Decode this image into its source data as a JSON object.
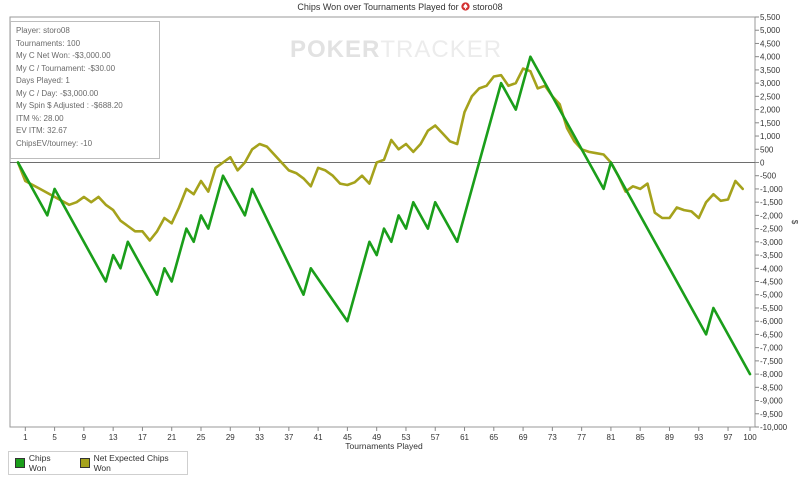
{
  "title": {
    "text": "Chips Won over Tournaments Played for",
    "player": "storo08",
    "icon": "pokerstars-spade-icon"
  },
  "watermark": {
    "bold": "POKER",
    "light": "TRACKER"
  },
  "stats": [
    "Player: storo08",
    "Tournaments: 100",
    "My C Net Won: -$3,000.00",
    "My C / Tournament: -$30.00",
    "Days Played: 1",
    "My C / Day: -$3,000.00",
    "My Spin $ Adjusted : -$688.20",
    "ITM %: 28.00",
    "EV ITM: 32.67",
    "ChipsEV/tourney: -10"
  ],
  "legend": [
    {
      "label": "Chips Won",
      "color": "#1a9e1a"
    },
    {
      "label": "Net Expected Chips Won",
      "color": "#a5a21c"
    }
  ],
  "chart_data": {
    "type": "line",
    "xlabel": "Tournaments Played",
    "ylabel": "$",
    "xlim": [
      0,
      100
    ],
    "ylim": [
      -10000,
      5500
    ],
    "x_ticks": [
      1,
      5,
      9,
      13,
      17,
      21,
      25,
      29,
      33,
      37,
      41,
      45,
      49,
      53,
      57,
      61,
      65,
      69,
      73,
      77,
      81,
      85,
      89,
      93,
      97,
      100
    ],
    "y_ticks": [
      5500,
      5000,
      4500,
      4000,
      3500,
      3000,
      2500,
      2000,
      1500,
      1000,
      500,
      0,
      -500,
      -1000,
      -1500,
      -2000,
      -2500,
      -3000,
      -3500,
      -4000,
      -4500,
      -5000,
      -5500,
      -6000,
      -6500,
      -7000,
      -7500,
      -8000,
      -8500,
      -9000,
      -9500,
      -10000
    ],
    "y_tick_labels": [
      "5,500",
      "5,000",
      "4,500",
      "4,000",
      "3,500",
      "3,000",
      "2,500",
      "2,000",
      "1,500",
      "1,000",
      "500",
      "0",
      "-500",
      "-1,000",
      "-1,500",
      "-2,000",
      "-2,500",
      "-3,000",
      "-3,500",
      "-4,000",
      "-4,500",
      "-5,000",
      "-5,500",
      "-6,000",
      "-6,500",
      "-7,000",
      "-7,500",
      "-8,000",
      "-8,500",
      "-9,000",
      "-9,500",
      "-10,000"
    ],
    "series": [
      {
        "name": "Chips Won",
        "color": "#1a9e1a",
        "points": [
          [
            0,
            0
          ],
          [
            4,
            -2000
          ],
          [
            5,
            -1000
          ],
          [
            12,
            -4500
          ],
          [
            13,
            -3500
          ],
          [
            14,
            -4000
          ],
          [
            15,
            -3000
          ],
          [
            19,
            -5000
          ],
          [
            20,
            -4000
          ],
          [
            21,
            -4500
          ],
          [
            23,
            -2500
          ],
          [
            24,
            -3000
          ],
          [
            25,
            -2000
          ],
          [
            26,
            -2500
          ],
          [
            28,
            -500
          ],
          [
            31,
            -2000
          ],
          [
            32,
            -1000
          ],
          [
            39,
            -5000
          ],
          [
            40,
            -4000
          ],
          [
            45,
            -6000
          ],
          [
            48,
            -3000
          ],
          [
            49,
            -3500
          ],
          [
            50,
            -2500
          ],
          [
            51,
            -3000
          ],
          [
            52,
            -2000
          ],
          [
            53,
            -2500
          ],
          [
            54,
            -1500
          ],
          [
            56,
            -2500
          ],
          [
            57,
            -1500
          ],
          [
            60,
            -3000
          ],
          [
            66,
            3000
          ],
          [
            68,
            2000
          ],
          [
            70,
            4000
          ],
          [
            80,
            -1000
          ],
          [
            81,
            0
          ],
          [
            94,
            -6500
          ],
          [
            95,
            -5500
          ],
          [
            100,
            -8000
          ]
        ]
      },
      {
        "name": "Net Expected Chips Won",
        "color": "#a5a21c",
        "points": [
          [
            0,
            0
          ],
          [
            1,
            -700
          ],
          [
            3,
            -1000
          ],
          [
            5,
            -1300
          ],
          [
            7,
            -1600
          ],
          [
            8,
            -1500
          ],
          [
            9,
            -1300
          ],
          [
            10,
            -1500
          ],
          [
            11,
            -1300
          ],
          [
            12,
            -1600
          ],
          [
            13,
            -1800
          ],
          [
            14,
            -2200
          ],
          [
            15,
            -2400
          ],
          [
            16,
            -2600
          ],
          [
            17,
            -2600
          ],
          [
            18,
            -2950
          ],
          [
            19,
            -2600
          ],
          [
            20,
            -2100
          ],
          [
            21,
            -2300
          ],
          [
            22,
            -1700
          ],
          [
            23,
            -1000
          ],
          [
            24,
            -1200
          ],
          [
            25,
            -700
          ],
          [
            26,
            -1100
          ],
          [
            27,
            -200
          ],
          [
            28,
            0
          ],
          [
            29,
            200
          ],
          [
            30,
            -300
          ],
          [
            31,
            0
          ],
          [
            32,
            500
          ],
          [
            33,
            700
          ],
          [
            34,
            600
          ],
          [
            35,
            300
          ],
          [
            37,
            -300
          ],
          [
            38,
            -400
          ],
          [
            39,
            -600
          ],
          [
            40,
            -900
          ],
          [
            41,
            -200
          ],
          [
            42,
            -300
          ],
          [
            43,
            -500
          ],
          [
            44,
            -800
          ],
          [
            45,
            -850
          ],
          [
            46,
            -750
          ],
          [
            47,
            -500
          ],
          [
            48,
            -800
          ],
          [
            49,
            0
          ],
          [
            50,
            100
          ],
          [
            51,
            850
          ],
          [
            52,
            500
          ],
          [
            53,
            700
          ],
          [
            54,
            400
          ],
          [
            55,
            700
          ],
          [
            56,
            1200
          ],
          [
            57,
            1400
          ],
          [
            58,
            1100
          ],
          [
            59,
            800
          ],
          [
            60,
            700
          ],
          [
            61,
            1900
          ],
          [
            62,
            2500
          ],
          [
            63,
            2800
          ],
          [
            64,
            2900
          ],
          [
            65,
            3250
          ],
          [
            66,
            3300
          ],
          [
            67,
            2900
          ],
          [
            68,
            3000
          ],
          [
            69,
            3550
          ],
          [
            70,
            3450
          ],
          [
            71,
            2800
          ],
          [
            72,
            2900
          ],
          [
            73,
            2500
          ],
          [
            74,
            2200
          ],
          [
            75,
            1300
          ],
          [
            76,
            800
          ],
          [
            77,
            500
          ],
          [
            78,
            400
          ],
          [
            79,
            350
          ],
          [
            80,
            300
          ],
          [
            81,
            0
          ],
          [
            82,
            -500
          ],
          [
            83,
            -1100
          ],
          [
            84,
            -900
          ],
          [
            85,
            -1000
          ],
          [
            86,
            -800
          ],
          [
            87,
            -1900
          ],
          [
            88,
            -2100
          ],
          [
            89,
            -2100
          ],
          [
            90,
            -1700
          ],
          [
            91,
            -1800
          ],
          [
            92,
            -1850
          ],
          [
            93,
            -2100
          ],
          [
            94,
            -1500
          ],
          [
            95,
            -1200
          ],
          [
            96,
            -1450
          ],
          [
            97,
            -1400
          ],
          [
            98,
            -700
          ],
          [
            99,
            -1000
          ]
        ]
      }
    ]
  }
}
